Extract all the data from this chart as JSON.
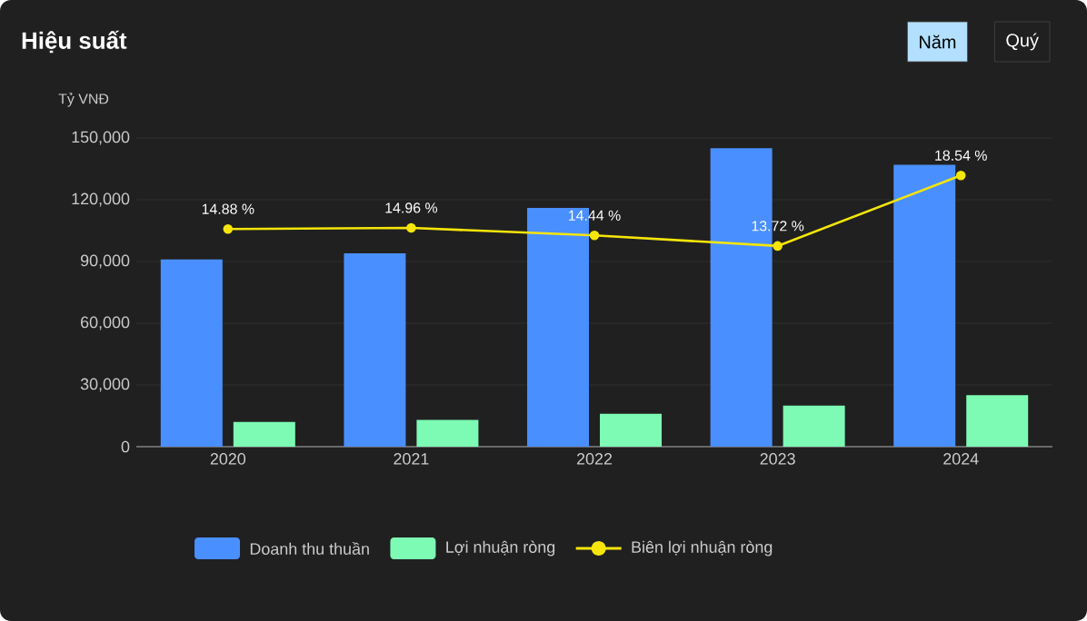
{
  "chart_data": {
    "type": "bar",
    "title": "Hiệu suất",
    "ylabel": "Tỷ VNĐ",
    "annotations": [
      "Năm",
      "Quý"
    ],
    "categories": [
      "2020",
      "2021",
      "2022",
      "2023",
      "2024"
    ],
    "series": [
      {
        "name": "Doanh thu thuần",
        "color": "#4a8fff",
        "values": [
          91000,
          94000,
          116000,
          145000,
          137000
        ]
      },
      {
        "name": "Lợi nhuận ròng",
        "color": "#7dfbb4",
        "values": [
          12000,
          13000,
          16000,
          20000,
          25000
        ]
      },
      {
        "name": "Biên lợi nhuận ròng",
        "type": "line",
        "axis": "y2",
        "marker": "circle",
        "color": "#f5e50a",
        "values": [
          14.88,
          14.96,
          14.44,
          13.72,
          18.54
        ],
        "value_labels": [
          "14.88 %",
          "14.96 %",
          "14.44 %",
          "13.72 %",
          "18.54 %"
        ]
      }
    ],
    "ylim": [
      0,
      150000
    ],
    "yticks": [
      0,
      {
        "value": 30000,
        "label": "30,000"
      },
      {
        "value": 60000,
        "label": "60,000"
      },
      {
        "value": 90000,
        "label": "90,000"
      },
      {
        "value": 120000,
        "label": "120,000"
      },
      {
        "value": 150000,
        "label": "150,000"
      }
    ],
    "y2lim": [
      0,
      21.1
    ],
    "tick_labels": [
      "x",
      "y"
    ],
    "grid": "y",
    "legend": "bottom"
  }
}
